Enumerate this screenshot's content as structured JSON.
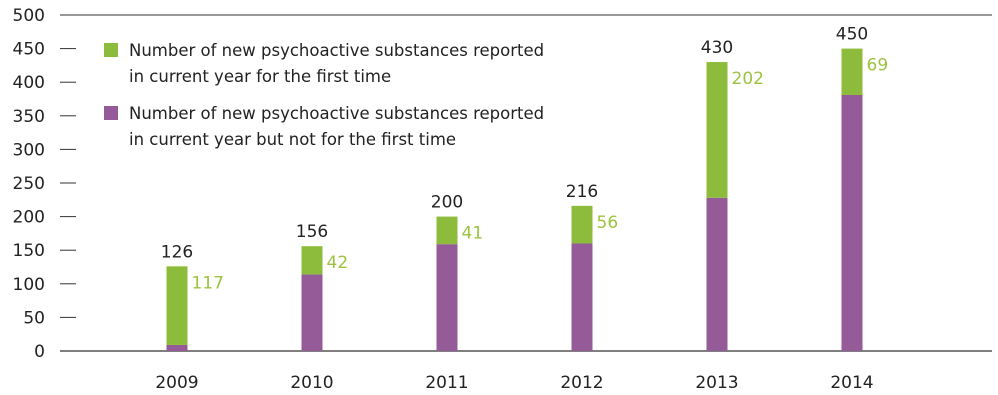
{
  "chart_data": {
    "type": "bar",
    "stacked": true,
    "title": "",
    "xlabel": "",
    "ylabel": "",
    "categories": [
      "2009",
      "2010",
      "2011",
      "2012",
      "2013",
      "2014"
    ],
    "series": [
      {
        "name": "Number of new psychoactive substances reported in current year but not for the first time",
        "legend_lines": [
          "Number of new psychoactive substances reported",
          "in current year but not for the first time"
        ],
        "values": [
          9,
          114,
          159,
          160,
          228,
          381
        ],
        "color": "#955b98"
      },
      {
        "name": "Number of new psychoactive substances reported in current year for the first time",
        "legend_lines": [
          "Number of new psychoactive substances reported",
          "in current year for the first time"
        ],
        "values": [
          117,
          42,
          41,
          56,
          202,
          69
        ],
        "color": "#8dbb3b"
      }
    ],
    "totals": [
      "126",
      "156",
      "200",
      "216",
      "430",
      "450"
    ],
    "first_time_labels": [
      "117",
      "42",
      "41",
      "56",
      "202",
      "69"
    ],
    "ylim": [
      0,
      500
    ],
    "yticks": [
      "0",
      "50",
      "100",
      "150",
      "200",
      "250",
      "300",
      "350",
      "400",
      "450",
      "500"
    ],
    "grid": false,
    "legend_position": "top-left",
    "label_color": "#9cc33f"
  }
}
